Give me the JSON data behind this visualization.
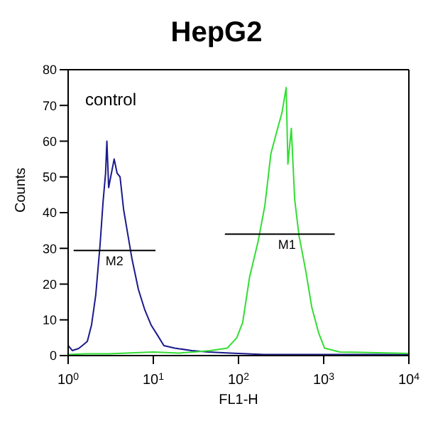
{
  "chart_data": {
    "type": "line",
    "title": "HepG2",
    "xlabel": "FL1-H",
    "ylabel": "Counts",
    "log": "x",
    "xlim": [
      1,
      10000
    ],
    "ylim": [
      0,
      80
    ],
    "xticks": [
      {
        "value": 1,
        "label": "10$^{0}$"
      },
      {
        "value": 10,
        "label": "10$^{1}$"
      },
      {
        "value": 100,
        "label": "10$^{2}$"
      },
      {
        "value": 1000,
        "label": "10$^{3}$"
      },
      {
        "value": 10000,
        "label": "10$^{4}$"
      }
    ],
    "yticks": [
      0,
      10,
      20,
      30,
      40,
      50,
      60,
      70,
      80
    ],
    "marker": "none",
    "line_style": "solid",
    "annotations": [
      "control",
      {
        "text": "M2",
        "x": 3.5,
        "y": 29.4
      },
      {
        "text": "M1",
        "x": 370,
        "y": 34
      }
    ],
    "series": [
      {
        "color": "#1a1a8c",
        "x": [
          1,
          1.12,
          1.33,
          1.5,
          1.68,
          1.88,
          2.11,
          2.37,
          2.57,
          2.75,
          2.85,
          2.99,
          3.16,
          3.47,
          3.76,
          4.07,
          4.47,
          5.01,
          5.62,
          6.68,
          7.94,
          9.44,
          11.2,
          13.3,
          17.8,
          28.2,
          44.7,
          79.4,
          200,
          1000,
          10000
        ],
        "values": [
          2.8,
          1.4,
          2,
          3,
          4,
          8.5,
          17,
          31,
          43,
          51,
          60,
          47,
          50,
          55,
          51,
          50,
          41,
          34,
          27,
          18.5,
          12.8,
          8.5,
          5.7,
          2.8,
          2.1,
          1.4,
          1,
          0.7,
          0.3,
          0.3,
          0.3
        ]
      },
      {
        "color": "#33dd33",
        "x": [
          1,
          1.6,
          3,
          10,
          20,
          30,
          46.8,
          74.1,
          95.5,
          112,
          135,
          170,
          204,
          240,
          288,
          324,
          363,
          380,
          417,
          457,
          513,
          617,
          724,
          871,
          1023,
          1549,
          10000
        ],
        "values": [
          0.3,
          0.5,
          0.5,
          1,
          0.7,
          1,
          1.4,
          2.1,
          5,
          9.3,
          22,
          32,
          42,
          56.5,
          63.6,
          68,
          75,
          53.6,
          63.6,
          43.6,
          33.6,
          23.6,
          13.6,
          6.4,
          2.1,
          1,
          0.6
        ]
      },
      {
        "color": "#000000",
        "x": [
          1.16,
          10.6
        ],
        "values": [
          29.4,
          29.4
        ]
      },
      {
        "color": "#000000",
        "x": [
          69.2,
          1349
        ],
        "values": [
          34,
          34
        ]
      }
    ]
  }
}
